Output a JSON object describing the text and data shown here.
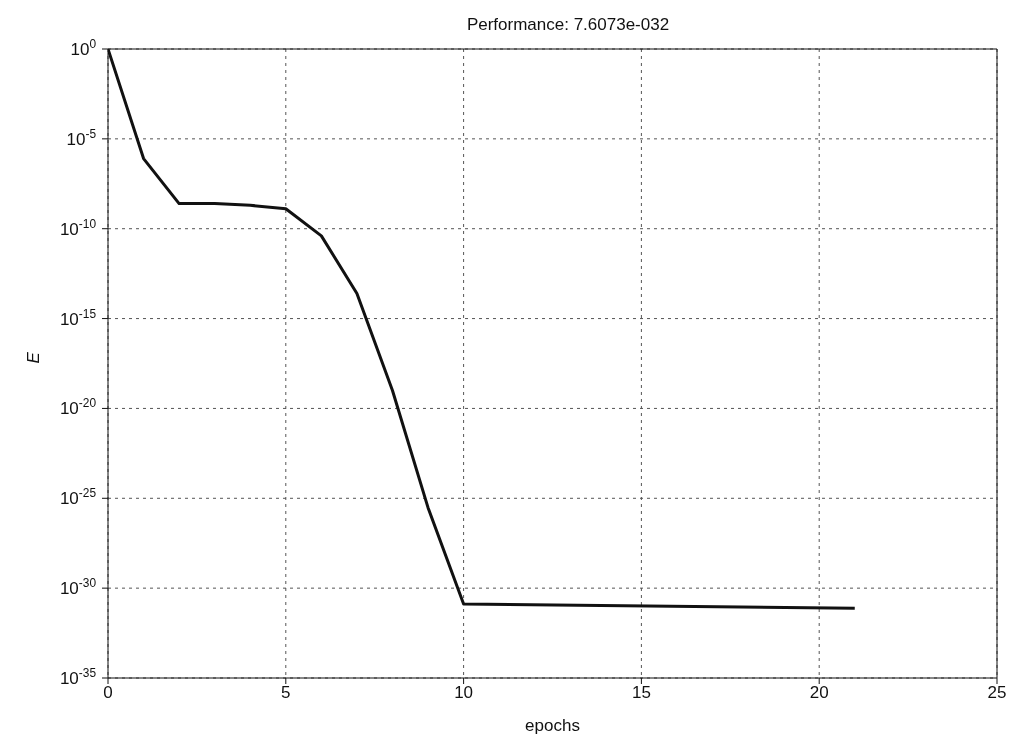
{
  "chart_data": {
    "type": "line",
    "title": "Performance: 7.6073e-032",
    "xlabel": "epochs",
    "ylabel": "E",
    "x": [
      0,
      1,
      2,
      3,
      4,
      5,
      6,
      7,
      8,
      9,
      10,
      21
    ],
    "series": [
      {
        "color": "#111111",
        "values": [
          1,
          8e-07,
          2.5e-09,
          2.5e-09,
          2e-09,
          1.3e-09,
          4e-11,
          2.5e-14,
          1e-19,
          3e-26,
          1.3e-31,
          7.6e-32
        ]
      }
    ],
    "xlim": [
      0,
      25
    ],
    "xticks": [
      0,
      5,
      10,
      15,
      20,
      25
    ],
    "ylim": [
      1e-35,
      1
    ],
    "yticks": [
      {
        "value": 1,
        "label": "10$^{0}$"
      },
      {
        "value": 1e-05,
        "label": "10$^{-5}$"
      },
      {
        "value": 1e-10,
        "label": "10$^{-10}$"
      },
      {
        "value": 1e-15,
        "label": "10$^{-15}$"
      },
      {
        "value": 1e-20,
        "label": "10$^{-20}$"
      },
      {
        "value": 1e-25,
        "label": "10$^{-25}$"
      },
      {
        "value": 1e-30,
        "label": "10$^{-30}$"
      },
      {
        "value": 1e-35,
        "label": "10$^{-35}$"
      }
    ],
    "log": true,
    "grid": true,
    "line_style": "solid",
    "marker": "none",
    "legend": false
  }
}
